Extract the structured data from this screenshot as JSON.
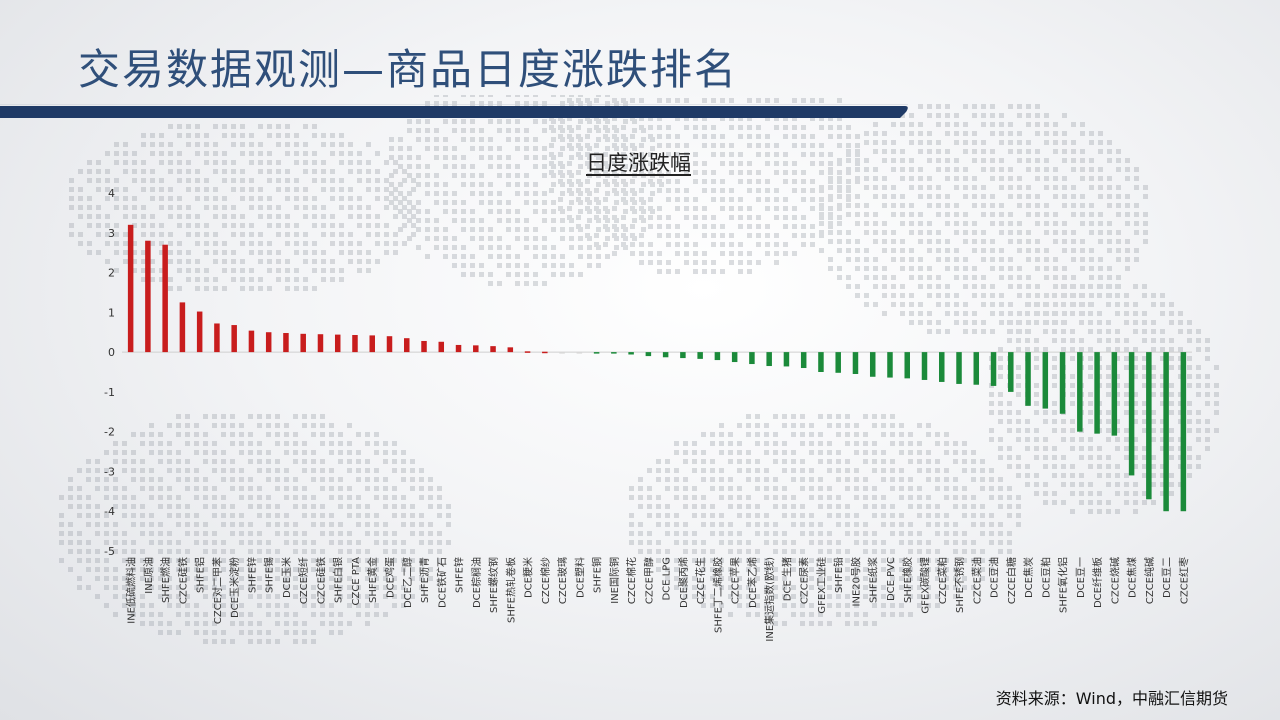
{
  "page": {
    "title": "交易数据观测—商品日度涨跌排名",
    "source": "资料来源：Wind，中融汇信期货"
  },
  "colors": {
    "title": "#2f4f7a",
    "header_bar": "#1f3a66",
    "up": "#c81d1d",
    "down": "#1b8a3a"
  },
  "chart_data": {
    "type": "bar",
    "title": "日度涨跌幅",
    "xlabel": "",
    "ylabel": "",
    "ylim": [
      -5,
      4
    ],
    "yticks": [
      4,
      3,
      2,
      1,
      0,
      -1,
      -2,
      -3,
      -4,
      -5
    ],
    "grid": false,
    "legend": "none",
    "categories": [
      "INE低硫燃料油",
      "INE原油",
      "SHFE燃油",
      "CZCE硅铁",
      "SHFE铝",
      "CZCE对二甲苯",
      "DCE玉米淀粉",
      "SHFE锌",
      "SHFE锡",
      "DCE玉米",
      "CZCE短纤",
      "CZCE硅铁",
      "SHFE白银",
      "CZCE PTA",
      "SHFE黄金",
      "DCE鸡蛋",
      "DCE乙二醇",
      "SHFE沥青",
      "DCE铁矿石",
      "SHFE锌",
      "DCE棕榈油",
      "SHFE螺纹钢",
      "SHFE热轧卷板",
      "DCE粳米",
      "CZCE棉纱",
      "CZCE玻璃",
      "DCE塑料",
      "SHFE铜",
      "INE国际铜",
      "CZCE棉花",
      "CZCE甲醇",
      "DCE LPG",
      "DCE聚丙烯",
      "CZCE花生",
      "SHFE丁二烯橡胶",
      "CZCE苹果",
      "DCE苯乙烯",
      "INE集运指数(欧线)",
      "DCE 生猪",
      "CZCE尿素",
      "GFEX工业硅",
      "SHFE铅",
      "INE20号胶",
      "SHFE纸浆",
      "DCE PVC",
      "SHFE橡胶",
      "GFEX碳酸锂",
      "CZCE菜粕",
      "SHFE不锈钢",
      "CZCE菜油",
      "DCE豆油",
      "CZCE白糖",
      "DCE焦炭",
      "DCE豆粕",
      "SHFE氧化铝",
      "DCE豆一",
      "DCE纤维板",
      "CZCE烧碱",
      "DCE焦煤",
      "CZCE纯碱",
      "DCE豆二",
      "CZCE红枣"
    ],
    "values": [
      3.2,
      2.8,
      2.7,
      1.25,
      1.02,
      0.72,
      0.68,
      0.54,
      0.5,
      0.48,
      0.46,
      0.45,
      0.44,
      0.43,
      0.42,
      0.4,
      0.35,
      0.28,
      0.26,
      0.18,
      0.17,
      0.15,
      0.12,
      0.02,
      0.01,
      0.0,
      0.0,
      -0.01,
      -0.03,
      -0.06,
      -0.1,
      -0.13,
      -0.15,
      -0.17,
      -0.2,
      -0.25,
      -0.3,
      -0.35,
      -0.36,
      -0.4,
      -0.5,
      -0.52,
      -0.55,
      -0.62,
      -0.64,
      -0.66,
      -0.7,
      -0.75,
      -0.8,
      -0.82,
      -0.85,
      -1.0,
      -1.35,
      -1.42,
      -1.55,
      -2.0,
      -2.05,
      -2.1,
      -3.1,
      -3.7,
      -4.0,
      -4.0
    ]
  }
}
